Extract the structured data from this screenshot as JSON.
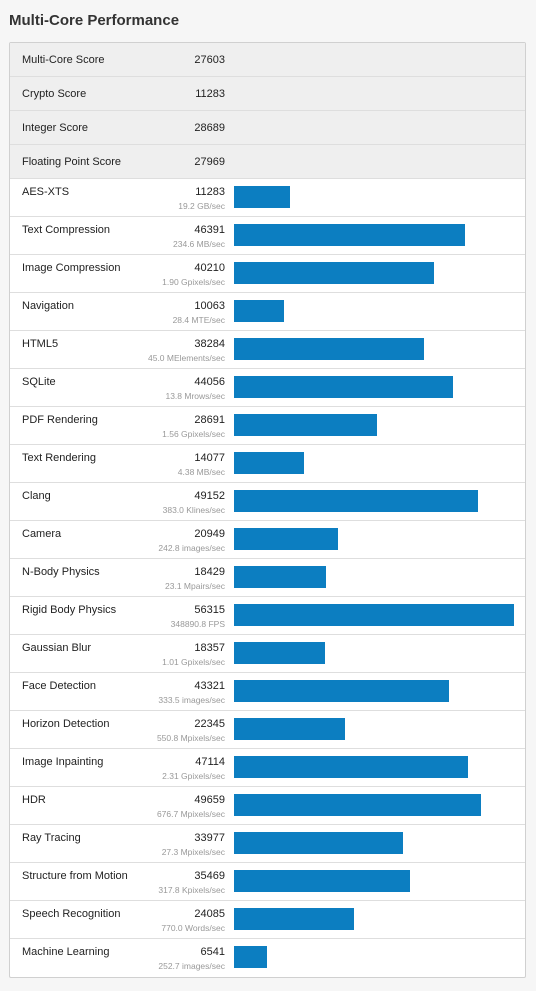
{
  "title": "Multi-Core Performance",
  "summary": [
    {
      "label": "Multi-Core Score",
      "score": 27603
    },
    {
      "label": "Crypto Score",
      "score": 11283
    },
    {
      "label": "Integer Score",
      "score": 28689
    },
    {
      "label": "Floating Point Score",
      "score": 27969
    }
  ],
  "benchmarks": [
    {
      "name": "AES-XTS",
      "score": 11283,
      "detail": "19.2 GB/sec"
    },
    {
      "name": "Text Compression",
      "score": 46391,
      "detail": "234.6 MB/sec"
    },
    {
      "name": "Image Compression",
      "score": 40210,
      "detail": "1.90 Gpixels/sec"
    },
    {
      "name": "Navigation",
      "score": 10063,
      "detail": "28.4 MTE/sec"
    },
    {
      "name": "HTML5",
      "score": 38284,
      "detail": "45.0 MElements/sec"
    },
    {
      "name": "SQLite",
      "score": 44056,
      "detail": "13.8 Mrows/sec"
    },
    {
      "name": "PDF Rendering",
      "score": 28691,
      "detail": "1.56 Gpixels/sec"
    },
    {
      "name": "Text Rendering",
      "score": 14077,
      "detail": "4.38 MB/sec"
    },
    {
      "name": "Clang",
      "score": 49152,
      "detail": "383.0 Klines/sec"
    },
    {
      "name": "Camera",
      "score": 20949,
      "detail": "242.8 images/sec"
    },
    {
      "name": "N-Body Physics",
      "score": 18429,
      "detail": "23.1 Mpairs/sec"
    },
    {
      "name": "Rigid Body Physics",
      "score": 56315,
      "detail": "348890.8 FPS"
    },
    {
      "name": "Gaussian Blur",
      "score": 18357,
      "detail": "1.01 Gpixels/sec"
    },
    {
      "name": "Face Detection",
      "score": 43321,
      "detail": "333.5 images/sec"
    },
    {
      "name": "Horizon Detection",
      "score": 22345,
      "detail": "550.8 Mpixels/sec"
    },
    {
      "name": "Image Inpainting",
      "score": 47114,
      "detail": "2.31 Gpixels/sec"
    },
    {
      "name": "HDR",
      "score": 49659,
      "detail": "676.7 Mpixels/sec"
    },
    {
      "name": "Ray Tracing",
      "score": 33977,
      "detail": "27.3 Mpixels/sec"
    },
    {
      "name": "Structure from Motion",
      "score": 35469,
      "detail": "317.8 Kpixels/sec"
    },
    {
      "name": "Speech Recognition",
      "score": 24085,
      "detail": "770.0 Words/sec"
    },
    {
      "name": "Machine Learning",
      "score": 6541,
      "detail": "252.7 images/sec"
    }
  ]
}
